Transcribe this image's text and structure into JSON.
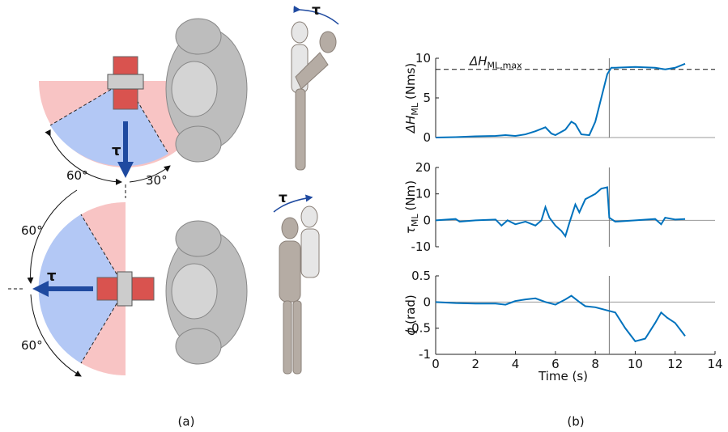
{
  "panel_a": {
    "label": "(a)",
    "top_left_angle": "60°",
    "top_right_angle": "30°",
    "top_torque": "τ",
    "bottom_upper_angle": "60°",
    "bottom_lower_angle": "60°",
    "bottom_torque": "τ",
    "mannequin_top_torque": "τ",
    "mannequin_bottom_torque": "τ"
  },
  "panel_b": {
    "label": "(b)"
  },
  "chart_data": [
    {
      "type": "line",
      "y_label_main": "ΔH",
      "y_label_sub": "ML",
      "y_label_unit": "(Nms)",
      "annotation_main": "ΔH",
      "annotation_sub": "ML,max",
      "reference_value": 8.6,
      "event_time": 8.7,
      "xlim": [
        0,
        14
      ],
      "ylim": [
        0,
        10
      ],
      "yticks": [
        0,
        5,
        10
      ],
      "x": [
        0,
        1,
        2,
        3,
        3.5,
        4,
        4.5,
        5,
        5.5,
        5.8,
        6,
        6.5,
        6.8,
        7,
        7.3,
        7.7,
        8,
        8.3,
        8.6,
        8.8,
        9,
        10,
        11,
        11.5,
        12,
        12.5
      ],
      "series": [
        {
          "color": "#0072bd",
          "values": [
            0,
            0.05,
            0.15,
            0.2,
            0.3,
            0.2,
            0.4,
            0.8,
            1.3,
            0.5,
            0.3,
            1,
            2,
            1.7,
            0.4,
            0.3,
            2,
            5,
            8,
            8.8,
            8.8,
            8.9,
            8.8,
            8.6,
            8.8,
            9.3
          ]
        }
      ]
    },
    {
      "type": "line",
      "y_label_main": "τ",
      "y_label_sub": "ML",
      "y_label_unit": "(Nm)",
      "event_time": 8.7,
      "xlim": [
        0,
        14
      ],
      "ylim": [
        -10,
        20
      ],
      "yticks": [
        -10,
        0,
        10,
        20
      ],
      "x": [
        0,
        1,
        1.2,
        2,
        3,
        3.3,
        3.6,
        4,
        4.5,
        5,
        5.3,
        5.5,
        5.7,
        6,
        6.3,
        6.5,
        6.7,
        7,
        7.2,
        7.5,
        8,
        8.3,
        8.6,
        8.7,
        9,
        10,
        11,
        11.3,
        11.5,
        12,
        12.5
      ],
      "series": [
        {
          "color": "#0072bd",
          "values": [
            0,
            0.5,
            -0.5,
            0,
            0.3,
            -2,
            0,
            -1.5,
            -0.5,
            -2,
            0,
            5,
            1,
            -2,
            -4,
            -6,
            -1,
            6,
            3,
            8,
            10,
            12,
            12.5,
            1,
            -0.5,
            0,
            0.5,
            -1.5,
            1,
            0.3,
            0.5
          ]
        }
      ]
    },
    {
      "type": "line",
      "y_label_main": "ϕ",
      "y_label_sub": "",
      "y_label_unit": "(rad)",
      "event_time": 8.7,
      "x_label": "Time (s)",
      "xlim": [
        0,
        14
      ],
      "xticks": [
        0,
        2,
        4,
        6,
        8,
        10,
        12,
        14
      ],
      "ylim": [
        -1,
        0.5
      ],
      "yticks": [
        -1,
        -0.5,
        0,
        0.5
      ],
      "x": [
        0,
        1,
        2,
        3,
        3.5,
        4,
        4.5,
        5,
        5.5,
        6,
        6.5,
        6.8,
        7.2,
        7.5,
        8,
        8.5,
        9,
        9.5,
        10,
        10.5,
        11,
        11.3,
        11.6,
        12,
        12.5
      ],
      "series": [
        {
          "color": "#0072bd",
          "values": [
            0,
            -0.02,
            -0.03,
            -0.03,
            -0.05,
            0.02,
            0.05,
            0.07,
            0,
            -0.05,
            0.05,
            0.12,
            0,
            -0.08,
            -0.1,
            -0.15,
            -0.2,
            -0.5,
            -0.75,
            -0.7,
            -0.4,
            -0.2,
            -0.3,
            -0.4,
            -0.65
          ]
        }
      ]
    }
  ]
}
